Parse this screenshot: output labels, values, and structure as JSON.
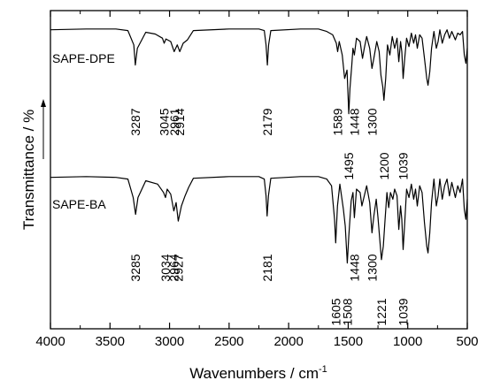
{
  "chart_data": {
    "type": "line",
    "xlabel": "Wavenumbers / cm",
    "xlabel_superscript": "-1",
    "ylabel": "Transmittance / %",
    "xlim": [
      4000,
      500
    ],
    "x_reversed": true,
    "xticks": [
      4000,
      3500,
      3000,
      2500,
      2000,
      1500,
      1000,
      500
    ],
    "grid": false,
    "legend": "none",
    "series": [
      {
        "name": "SAPE-DPE",
        "peaks": [
          3287,
          3045,
          2961,
          2914,
          2179,
          1589,
          1495,
          1448,
          1300,
          1200,
          1039
        ],
        "peak_labels": [
          "3287",
          "3045",
          "2961",
          "2914",
          "2179",
          "1589",
          "1495",
          "1448",
          "1300",
          "1200",
          "1039"
        ],
        "spectrum": [
          [
            4000,
            97
          ],
          [
            3700,
            97.5
          ],
          [
            3450,
            97.5
          ],
          [
            3350,
            96.5
          ],
          [
            3300,
            88
          ],
          [
            3287,
            76
          ],
          [
            3270,
            86
          ],
          [
            3200,
            95.5
          ],
          [
            3120,
            94.5
          ],
          [
            3060,
            92
          ],
          [
            3045,
            89
          ],
          [
            3030,
            91.5
          ],
          [
            2990,
            90
          ],
          [
            2961,
            84
          ],
          [
            2935,
            88
          ],
          [
            2914,
            84
          ],
          [
            2885,
            89
          ],
          [
            2850,
            91
          ],
          [
            2800,
            96.5
          ],
          [
            2500,
            97.5
          ],
          [
            2250,
            97.5
          ],
          [
            2205,
            96.5
          ],
          [
            2190,
            88
          ],
          [
            2179,
            76
          ],
          [
            2168,
            88
          ],
          [
            2150,
            96.5
          ],
          [
            1900,
            97.5
          ],
          [
            1750,
            97.5
          ],
          [
            1680,
            96
          ],
          [
            1630,
            94
          ],
          [
            1600,
            89
          ],
          [
            1589,
            84
          ],
          [
            1575,
            90
          ],
          [
            1550,
            82
          ],
          [
            1530,
            68
          ],
          [
            1510,
            73
          ],
          [
            1495,
            47
          ],
          [
            1485,
            62
          ],
          [
            1470,
            76
          ],
          [
            1460,
            86
          ],
          [
            1448,
            82
          ],
          [
            1430,
            92
          ],
          [
            1400,
            90
          ],
          [
            1380,
            80
          ],
          [
            1365,
            86
          ],
          [
            1345,
            93
          ],
          [
            1320,
            86
          ],
          [
            1300,
            74
          ],
          [
            1285,
            80
          ],
          [
            1260,
            90
          ],
          [
            1240,
            84
          ],
          [
            1225,
            70
          ],
          [
            1210,
            63
          ],
          [
            1200,
            55
          ],
          [
            1185,
            68
          ],
          [
            1170,
            88
          ],
          [
            1150,
            82
          ],
          [
            1130,
            93
          ],
          [
            1110,
            86
          ],
          [
            1090,
            92
          ],
          [
            1075,
            78
          ],
          [
            1060,
            90
          ],
          [
            1050,
            84
          ],
          [
            1039,
            68
          ],
          [
            1025,
            80
          ],
          [
            1010,
            92
          ],
          [
            990,
            87
          ],
          [
            970,
            95
          ],
          [
            950,
            89
          ],
          [
            935,
            94
          ],
          [
            920,
            86
          ],
          [
            900,
            94
          ],
          [
            880,
            92
          ],
          [
            860,
            80
          ],
          [
            840,
            68
          ],
          [
            830,
            64
          ],
          [
            815,
            72
          ],
          [
            800,
            86
          ],
          [
            780,
            96
          ],
          [
            760,
            86
          ],
          [
            745,
            90
          ],
          [
            730,
            97
          ],
          [
            710,
            89
          ],
          [
            690,
            94
          ],
          [
            670,
            97
          ],
          [
            650,
            92
          ],
          [
            630,
            96
          ],
          [
            600,
            91
          ],
          [
            580,
            95
          ],
          [
            560,
            94
          ],
          [
            540,
            96
          ],
          [
            525,
            82
          ],
          [
            512,
            77
          ],
          [
            500,
            86
          ]
        ]
      },
      {
        "name": "SAPE-BA",
        "peaks": [
          3285,
          3034,
          2964,
          2927,
          2181,
          1605,
          1508,
          1448,
          1300,
          1221,
          1039
        ],
        "peak_labels": [
          "3285",
          "3034",
          "2964",
          "2927",
          "2181",
          "1605",
          "1508",
          "1448",
          "1300",
          "1221",
          "1039"
        ],
        "spectrum": [
          [
            4000,
            97
          ],
          [
            3700,
            97.5
          ],
          [
            3450,
            97
          ],
          [
            3350,
            96
          ],
          [
            3305,
            85
          ],
          [
            3285,
            75
          ],
          [
            3265,
            85
          ],
          [
            3200,
            95
          ],
          [
            3100,
            93
          ],
          [
            3050,
            88
          ],
          [
            3034,
            85
          ],
          [
            3020,
            90
          ],
          [
            2990,
            87
          ],
          [
            2964,
            77
          ],
          [
            2945,
            82
          ],
          [
            2927,
            71
          ],
          [
            2900,
            80
          ],
          [
            2870,
            86
          ],
          [
            2840,
            91
          ],
          [
            2800,
            96.5
          ],
          [
            2500,
            97.5
          ],
          [
            2250,
            97.5
          ],
          [
            2205,
            96
          ],
          [
            2190,
            86
          ],
          [
            2181,
            74
          ],
          [
            2170,
            86
          ],
          [
            2150,
            96.5
          ],
          [
            1900,
            97.5
          ],
          [
            1750,
            97.5
          ],
          [
            1680,
            96
          ],
          [
            1640,
            92
          ],
          [
            1615,
            72
          ],
          [
            1605,
            58
          ],
          [
            1590,
            80
          ],
          [
            1570,
            93
          ],
          [
            1540,
            78
          ],
          [
            1525,
            68
          ],
          [
            1508,
            46
          ],
          [
            1495,
            62
          ],
          [
            1475,
            83
          ],
          [
            1460,
            88
          ],
          [
            1448,
            73
          ],
          [
            1430,
            90
          ],
          [
            1400,
            88
          ],
          [
            1385,
            80
          ],
          [
            1365,
            86
          ],
          [
            1345,
            92
          ],
          [
            1320,
            82
          ],
          [
            1300,
            64
          ],
          [
            1285,
            74
          ],
          [
            1265,
            84
          ],
          [
            1250,
            73
          ],
          [
            1235,
            60
          ],
          [
            1221,
            48
          ],
          [
            1205,
            56
          ],
          [
            1190,
            72
          ],
          [
            1175,
            88
          ],
          [
            1160,
            79
          ],
          [
            1145,
            88
          ],
          [
            1125,
            84
          ],
          [
            1110,
            90
          ],
          [
            1090,
            86
          ],
          [
            1075,
            66
          ],
          [
            1060,
            80
          ],
          [
            1050,
            72
          ],
          [
            1039,
            54
          ],
          [
            1025,
            70
          ],
          [
            1010,
            90
          ],
          [
            990,
            85
          ],
          [
            970,
            93
          ],
          [
            950,
            84
          ],
          [
            935,
            90
          ],
          [
            920,
            80
          ],
          [
            900,
            92
          ],
          [
            880,
            88
          ],
          [
            860,
            70
          ],
          [
            840,
            56
          ],
          [
            830,
            52
          ],
          [
            815,
            64
          ],
          [
            800,
            82
          ],
          [
            780,
            96
          ],
          [
            760,
            80
          ],
          [
            745,
            86
          ],
          [
            730,
            96
          ],
          [
            710,
            84
          ],
          [
            690,
            92
          ],
          [
            670,
            96
          ],
          [
            650,
            86
          ],
          [
            630,
            94
          ],
          [
            600,
            85
          ],
          [
            580,
            92
          ],
          [
            560,
            88
          ],
          [
            540,
            96
          ],
          [
            525,
            78
          ],
          [
            512,
            72
          ],
          [
            500,
            84
          ]
        ]
      }
    ]
  }
}
